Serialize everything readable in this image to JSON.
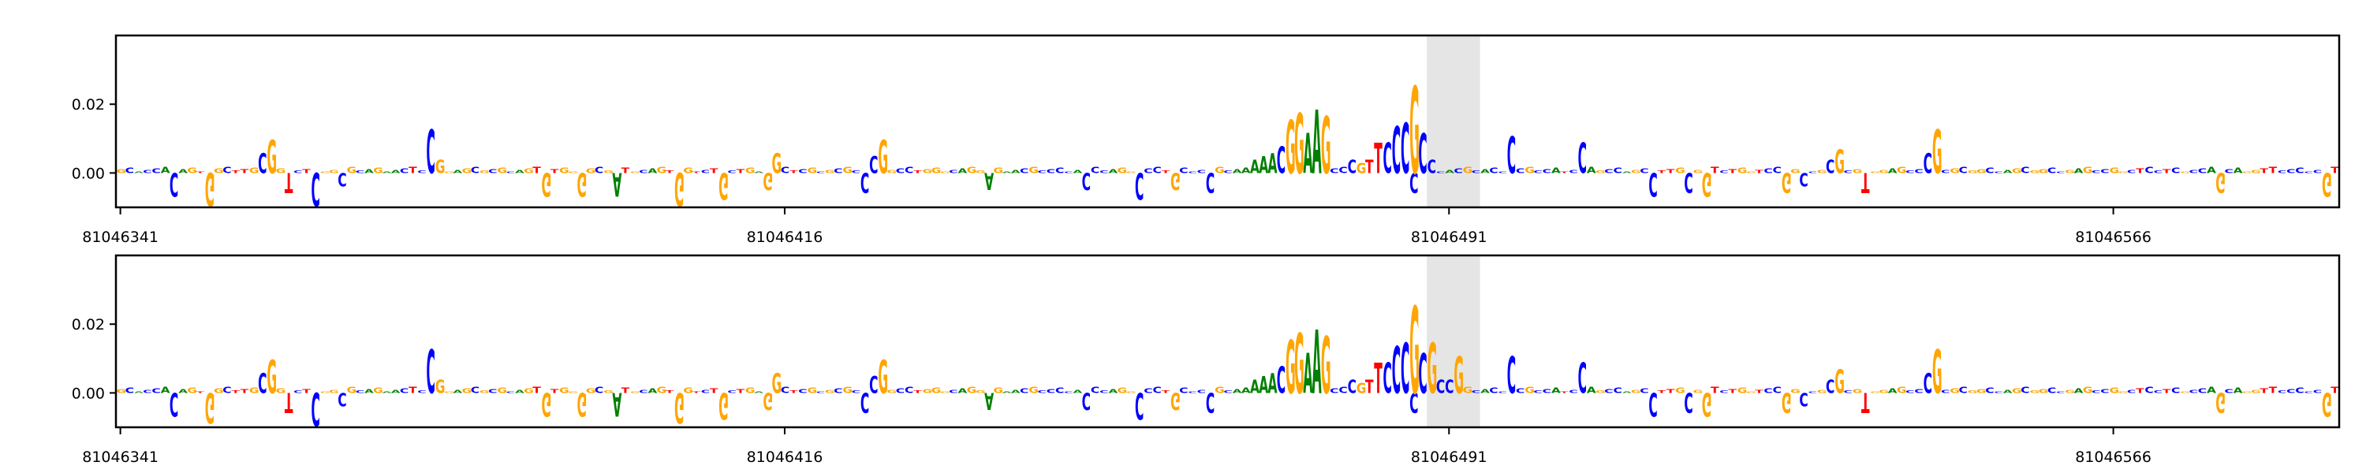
{
  "colors": {
    "A": "#008000",
    "C": "#0000ff",
    "G": "#ffa500",
    "T": "#ff0000",
    "highlight": "#e5e5e5",
    "axis": "#000000"
  },
  "chart_data": [
    {
      "type": "sequence-logo",
      "title": "",
      "xlabel": "",
      "ylabel": "",
      "xlim": [
        81046341,
        81046591
      ],
      "ylim": [
        -0.01,
        0.04
      ],
      "yticks": [
        "0.02",
        "0.00"
      ],
      "xticks": [
        "81046341",
        "81046416",
        "81046491",
        "81046566"
      ],
      "highlight": [
        81046489,
        81046494
      ],
      "sequence_start": 81046341,
      "sequence": "GCACCACAGTGGCTTGCTGTCTCGGCGCAGAACTCTGGAGCGCGCAGTGTGGGGCGATGCAGTGGTCTGCTGAGCCTCGCGCGCCACGCCTGGGCAGGAGAACGCCCCACCCAGGCCCTGCCCCGCAAGCGGAAGGGCCGCGTTCCCGCCACGCACCCCGCCATCCAGCCAGCCTTGCGGTCTGGTCCGGCCGCGCGTGGAGCCTTCGCGGCCAGCGGCCGAGCCGGCTCCTCGCCAGCAGGTTCCCCCGTCC",
      "motifs": [
        {
          "start": 81046357,
          "seq": "CG",
          "values": [
            0.006,
            0.01
          ]
        },
        {
          "start": 81046376,
          "seq": "CG",
          "values": [
            0.013,
            0.004
          ]
        },
        {
          "start": 81046415,
          "seq": "G",
          "values": [
            0.006
          ]
        },
        {
          "start": 81046426,
          "seq": "CG",
          "values": [
            0.005,
            0.01
          ]
        },
        {
          "start": 81046469,
          "seq": "AAACGGAAG",
          "values": [
            0.004,
            0.005,
            0.006,
            0.008,
            0.016,
            0.018,
            0.012,
            0.019,
            0.017
          ]
        },
        {
          "start": 81046480,
          "seq": "CGTTCCCGCC",
          "values": [
            0.004,
            0.003,
            0.004,
            0.009,
            0.009,
            0.014,
            0.015,
            0.026,
            0.012,
            0.004
          ]
        },
        {
          "start": 81046498,
          "seq": "C",
          "values": [
            0.011
          ]
        },
        {
          "start": 81046506,
          "seq": "C",
          "values": [
            0.009
          ]
        },
        {
          "start": 81046534,
          "seq": "CG",
          "values": [
            0.004,
            0.007
          ]
        },
        {
          "start": 81046545,
          "seq": "CG",
          "values": [
            0.006,
            0.013
          ]
        }
      ],
      "negatives": [
        {
          "pos": 81046347,
          "value": -0.007
        },
        {
          "pos": 81046351,
          "value": -0.01
        },
        {
          "pos": 81046360,
          "value": -0.006
        },
        {
          "pos": 81046363,
          "value": -0.01
        },
        {
          "pos": 81046366,
          "value": -0.004
        },
        {
          "pos": 81046389,
          "value": -0.007
        },
        {
          "pos": 81046393,
          "value": -0.007
        },
        {
          "pos": 81046397,
          "value": -0.007
        },
        {
          "pos": 81046404,
          "value": -0.01
        },
        {
          "pos": 81046409,
          "value": -0.008
        },
        {
          "pos": 81046414,
          "value": -0.005
        },
        {
          "pos": 81046425,
          "value": -0.006
        },
        {
          "pos": 81046439,
          "value": -0.005
        },
        {
          "pos": 81046450,
          "value": -0.005
        },
        {
          "pos": 81046456,
          "value": -0.008
        },
        {
          "pos": 81046460,
          "value": -0.005
        },
        {
          "pos": 81046464,
          "value": -0.006
        },
        {
          "pos": 81046487,
          "value": -0.006
        },
        {
          "pos": 81046514,
          "value": -0.007
        },
        {
          "pos": 81046518,
          "value": -0.006
        },
        {
          "pos": 81046520,
          "value": -0.007
        },
        {
          "pos": 81046529,
          "value": -0.006
        },
        {
          "pos": 81046531,
          "value": -0.004
        },
        {
          "pos": 81046538,
          "value": -0.006
        },
        {
          "pos": 81046578,
          "value": -0.006
        },
        {
          "pos": 81046590,
          "value": -0.007
        }
      ]
    },
    {
      "type": "sequence-logo",
      "title": "",
      "xlabel": "",
      "ylabel": "",
      "xlim": [
        81046341,
        81046591
      ],
      "ylim": [
        -0.01,
        0.04
      ],
      "yticks": [
        "0.02",
        "0.00"
      ],
      "xticks": [
        "81046341",
        "81046416",
        "81046491",
        "81046566"
      ],
      "highlight": [
        81046489,
        81046494
      ],
      "sequence_start": 81046341,
      "sequence": "GCACCACAGTGGCTTGCTGTCTCGGCGCAGAACTCTGGAGCGCGCAGTGTGGGGCGATGCAGTGGTCTGCTGAGCCTCGCGCGCCACGCCTGGGCAGGAGAACGCCCCACCCAGGCCCTGCCCCGCAAGCGGAAGGGCCGCGTTCCCGCCACGCACCCCGCCATCCAGCCAGCCTTGCGGTCTGGTCCGGCCGCGCGTGGAGCCTTCGCGGCCAGCGGCCGAGCCGGCTCCTCGCCAGCAGGTTCCCCCGTCC",
      "motifs": [
        {
          "start": 81046357,
          "seq": "CG",
          "values": [
            0.006,
            0.01
          ]
        },
        {
          "start": 81046376,
          "seq": "CG",
          "values": [
            0.013,
            0.004
          ]
        },
        {
          "start": 81046415,
          "seq": "G",
          "values": [
            0.006
          ]
        },
        {
          "start": 81046426,
          "seq": "CG",
          "values": [
            0.005,
            0.01
          ]
        },
        {
          "start": 81046469,
          "seq": "AAACGGAAG",
          "values": [
            0.004,
            0.005,
            0.006,
            0.008,
            0.016,
            0.018,
            0.012,
            0.019,
            0.017
          ]
        },
        {
          "start": 81046480,
          "seq": "CGTTCCCGCC",
          "values": [
            0.004,
            0.003,
            0.004,
            0.009,
            0.009,
            0.014,
            0.015,
            0.026,
            0.012,
            0.004
          ]
        },
        {
          "start": 81046489,
          "seq": "GCCG",
          "values": [
            0.015,
            0.004,
            0.004,
            0.011
          ]
        },
        {
          "start": 81046498,
          "seq": "C",
          "values": [
            0.011
          ]
        },
        {
          "start": 81046506,
          "seq": "C",
          "values": [
            0.009
          ]
        },
        {
          "start": 81046534,
          "seq": "CG",
          "values": [
            0.004,
            0.007
          ]
        },
        {
          "start": 81046545,
          "seq": "CG",
          "values": [
            0.006,
            0.013
          ]
        }
      ],
      "negatives": [
        {
          "pos": 81046347,
          "value": -0.007
        },
        {
          "pos": 81046351,
          "value": -0.009
        },
        {
          "pos": 81046360,
          "value": -0.006
        },
        {
          "pos": 81046363,
          "value": -0.01
        },
        {
          "pos": 81046366,
          "value": -0.004
        },
        {
          "pos": 81046389,
          "value": -0.007
        },
        {
          "pos": 81046393,
          "value": -0.007
        },
        {
          "pos": 81046397,
          "value": -0.007
        },
        {
          "pos": 81046404,
          "value": -0.009
        },
        {
          "pos": 81046409,
          "value": -0.008
        },
        {
          "pos": 81046414,
          "value": -0.005
        },
        {
          "pos": 81046425,
          "value": -0.006
        },
        {
          "pos": 81046439,
          "value": -0.005
        },
        {
          "pos": 81046450,
          "value": -0.005
        },
        {
          "pos": 81046456,
          "value": -0.008
        },
        {
          "pos": 81046460,
          "value": -0.005
        },
        {
          "pos": 81046464,
          "value": -0.006
        },
        {
          "pos": 81046487,
          "value": -0.006
        },
        {
          "pos": 81046514,
          "value": -0.007
        },
        {
          "pos": 81046518,
          "value": -0.006
        },
        {
          "pos": 81046520,
          "value": -0.007
        },
        {
          "pos": 81046529,
          "value": -0.006
        },
        {
          "pos": 81046531,
          "value": -0.004
        },
        {
          "pos": 81046538,
          "value": -0.006
        },
        {
          "pos": 81046578,
          "value": -0.006
        },
        {
          "pos": 81046590,
          "value": -0.007
        }
      ]
    }
  ]
}
